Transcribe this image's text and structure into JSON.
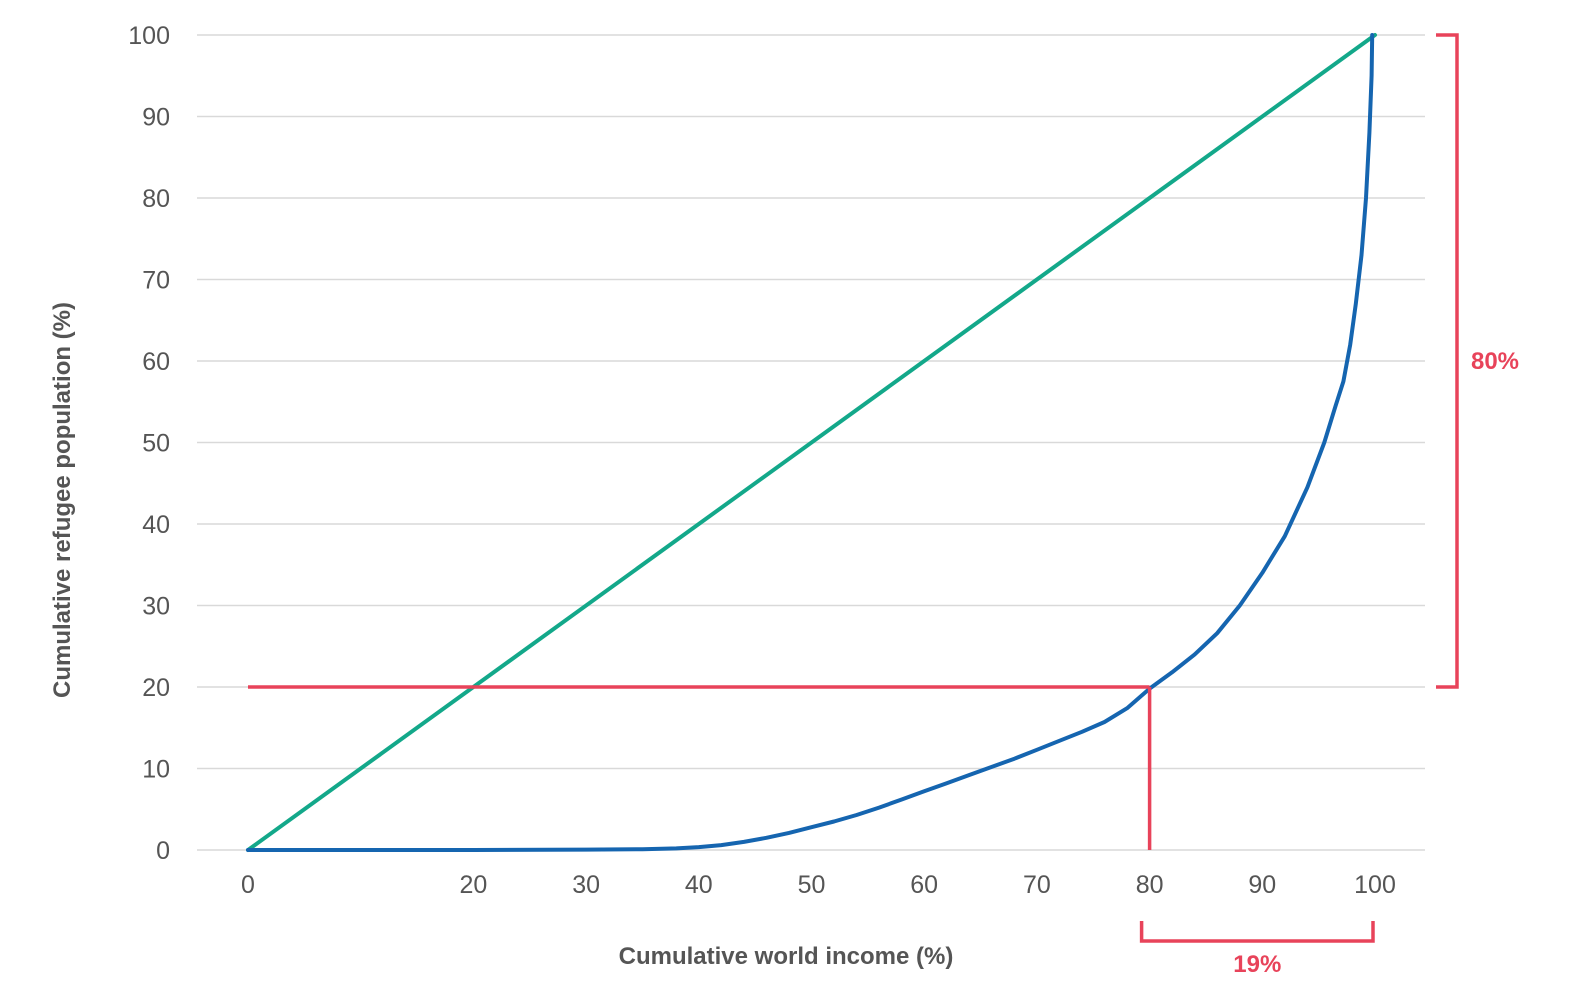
{
  "chart_data": {
    "type": "line",
    "title": "",
    "xlabel": "Cumulative world income (%)",
    "ylabel": "Cumulative refugee population (%)",
    "xlim": [
      0,
      100
    ],
    "ylim": [
      0,
      100
    ],
    "x_ticks": [
      0,
      20,
      30,
      40,
      50,
      60,
      70,
      80,
      90,
      100
    ],
    "y_ticks": [
      0,
      10,
      20,
      30,
      40,
      50,
      60,
      70,
      80,
      90,
      100
    ],
    "grid": "horizontal",
    "legend": "none",
    "series": [
      {
        "color": "#13a88a",
        "points": [
          [
            0,
            0
          ],
          [
            100,
            100
          ]
        ]
      },
      {
        "color": "#1565b0",
        "points": [
          [
            0,
            0
          ],
          [
            20,
            0
          ],
          [
            30,
            0.05
          ],
          [
            35,
            0.1
          ],
          [
            38,
            0.2
          ],
          [
            40,
            0.35
          ],
          [
            42,
            0.6
          ],
          [
            44,
            1.0
          ],
          [
            46,
            1.5
          ],
          [
            48,
            2.1
          ],
          [
            50,
            2.8
          ],
          [
            52,
            3.5
          ],
          [
            54,
            4.3
          ],
          [
            56,
            5.2
          ],
          [
            58,
            6.2
          ],
          [
            60,
            7.2
          ],
          [
            62,
            8.2
          ],
          [
            64,
            9.2
          ],
          [
            66,
            10.2
          ],
          [
            68,
            11.2
          ],
          [
            70,
            12.3
          ],
          [
            72,
            13.4
          ],
          [
            74,
            14.5
          ],
          [
            76,
            15.7
          ],
          [
            78,
            17.4
          ],
          [
            80,
            19.8
          ],
          [
            82,
            21.8
          ],
          [
            84,
            24.0
          ],
          [
            86,
            26.6
          ],
          [
            88,
            30.0
          ],
          [
            90,
            34.0
          ],
          [
            92,
            38.5
          ],
          [
            94,
            44.5
          ],
          [
            95.5,
            50.0
          ],
          [
            96.5,
            54.5
          ],
          [
            97.2,
            57.5
          ],
          [
            97.8,
            62.0
          ],
          [
            98.3,
            67.0
          ],
          [
            98.8,
            73.0
          ],
          [
            99.2,
            80.0
          ],
          [
            99.5,
            88.0
          ],
          [
            99.7,
            95.0
          ],
          [
            99.75,
            100.0
          ]
        ]
      }
    ],
    "annotations": {
      "color": "#e8435a",
      "h_line_y": 20,
      "v_line_x": 80,
      "bracket_right": {
        "label": "80%",
        "from_y": 20,
        "to_y": 100
      },
      "bracket_bottom": {
        "label": "19%",
        "from_x": 80,
        "to_x": 100
      }
    }
  }
}
